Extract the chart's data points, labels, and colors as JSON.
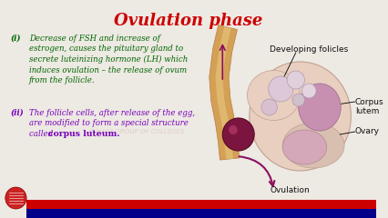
{
  "title": "Ovulation phase",
  "title_color": "#cc0000",
  "title_fontsize": 13,
  "bg_color": "#ede9e3",
  "point_i_label": "(i)",
  "point_i_text_line1": "Decrease of FSH and increase of",
  "point_i_text_line2": "estrogen, causes the pituitary gland to",
  "point_i_text_line3": "secrete luteinizing hormone (LH) which",
  "point_i_text_line4": "induces ovulation – the release of ovum",
  "point_i_text_line5": "from the follicle.",
  "point_i_color": "#006600",
  "point_ii_label": "(ii)",
  "point_ii_line1": "The follicle cells, after release of the egg,",
  "point_ii_line2": "are modified to form a special structure",
  "point_ii_line3_plain": "called ",
  "point_ii_line3_bold": "corpus luteum.",
  "point_ii_color": "#7700bb",
  "diagram_label_color": "#111111",
  "footer_bar_red": "#cc0000",
  "footer_bar_blue": "#00008a",
  "watermark_text": "PUNJAB GROUP OF COLLEGES",
  "watermark_color": "#c8a8a0",
  "watermark_alpha": 0.4,
  "tube_color": "#d4a055",
  "ovary_color": "#e8cfc0",
  "ovary_edge": "#c0a090",
  "corpus_color": "#c890b0",
  "corpus_edge": "#a07090",
  "follicle_color": "#dcc8d8",
  "follicle_edge": "#b098b0",
  "ovum_color": "#7b1540",
  "ovum_edge": "#5b0820",
  "arrow_color": "#8b1060"
}
